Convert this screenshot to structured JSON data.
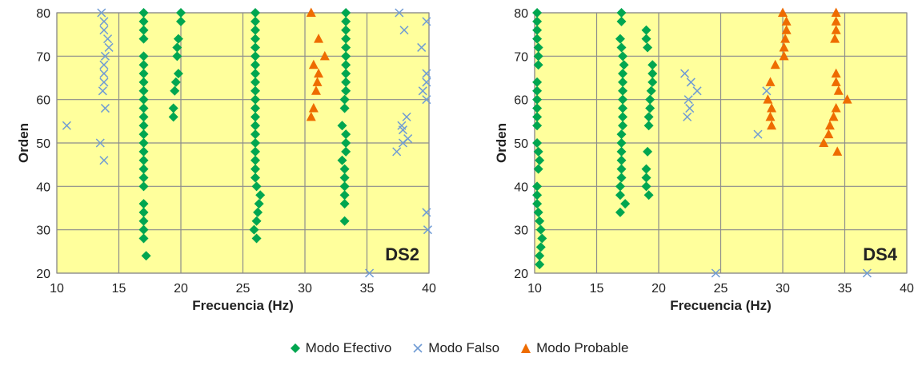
{
  "legend": {
    "effective": "Modo Efectivo",
    "false": "Modo Falso",
    "probable": "Modo Probable"
  },
  "colors": {
    "effective": "#00a650",
    "false": "#6f9bd4",
    "probable": "#ee6c00",
    "plot_bg": "#ffff9c",
    "grid": "#8c8c8c"
  },
  "chart_data": [
    {
      "type": "scatter",
      "label": "DS2",
      "xlabel": "Frecuencia (Hz)",
      "ylabel": "Orden",
      "xlim": [
        10,
        40
      ],
      "ylim": [
        20,
        80
      ],
      "xticks": [
        10,
        15,
        20,
        25,
        30,
        35,
        40
      ],
      "yticks": [
        20,
        30,
        40,
        50,
        60,
        70,
        80
      ],
      "grid": true,
      "series": [
        {
          "name": "Modo Efectivo",
          "marker": "diamond",
          "points": [
            [
              17.0,
              80
            ],
            [
              17.0,
              78
            ],
            [
              17.0,
              76
            ],
            [
              17.0,
              74
            ],
            [
              17.0,
              70
            ],
            [
              17.0,
              68
            ],
            [
              17.0,
              66
            ],
            [
              17.0,
              64
            ],
            [
              17.0,
              62
            ],
            [
              17.0,
              60
            ],
            [
              17.0,
              58
            ],
            [
              17.0,
              56
            ],
            [
              17.0,
              54
            ],
            [
              17.0,
              52
            ],
            [
              17.0,
              50
            ],
            [
              17.0,
              48
            ],
            [
              17.0,
              46
            ],
            [
              17.0,
              44
            ],
            [
              17.0,
              42
            ],
            [
              17.0,
              40
            ],
            [
              17.0,
              36
            ],
            [
              17.0,
              34
            ],
            [
              17.0,
              32
            ],
            [
              17.0,
              30
            ],
            [
              17.0,
              28
            ],
            [
              17.2,
              24
            ],
            [
              20.0,
              80
            ],
            [
              20.0,
              78
            ],
            [
              19.8,
              74
            ],
            [
              19.7,
              72
            ],
            [
              19.7,
              70
            ],
            [
              19.8,
              66
            ],
            [
              19.6,
              64
            ],
            [
              19.5,
              62
            ],
            [
              19.4,
              58
            ],
            [
              19.4,
              56
            ],
            [
              26.0,
              80
            ],
            [
              26.0,
              78
            ],
            [
              26.0,
              76
            ],
            [
              26.0,
              74
            ],
            [
              26.0,
              72
            ],
            [
              26.0,
              70
            ],
            [
              26.0,
              68
            ],
            [
              26.0,
              66
            ],
            [
              26.0,
              64
            ],
            [
              26.0,
              62
            ],
            [
              26.0,
              60
            ],
            [
              26.0,
              58
            ],
            [
              26.0,
              56
            ],
            [
              26.0,
              54
            ],
            [
              26.0,
              52
            ],
            [
              26.0,
              50
            ],
            [
              26.0,
              48
            ],
            [
              26.0,
              46
            ],
            [
              26.0,
              44
            ],
            [
              26.0,
              42
            ],
            [
              26.1,
              40
            ],
            [
              26.4,
              38
            ],
            [
              26.3,
              36
            ],
            [
              26.2,
              34
            ],
            [
              26.1,
              32
            ],
            [
              25.9,
              30
            ],
            [
              26.1,
              28
            ],
            [
              33.3,
              80
            ],
            [
              33.3,
              78
            ],
            [
              33.3,
              76
            ],
            [
              33.3,
              74
            ],
            [
              33.3,
              72
            ],
            [
              33.3,
              70
            ],
            [
              33.3,
              68
            ],
            [
              33.3,
              66
            ],
            [
              33.3,
              64
            ],
            [
              33.3,
              62
            ],
            [
              33.2,
              60
            ],
            [
              33.2,
              58
            ],
            [
              33.0,
              54
            ],
            [
              33.3,
              52
            ],
            [
              33.3,
              50
            ],
            [
              33.3,
              48
            ],
            [
              33.0,
              46
            ],
            [
              33.2,
              44
            ],
            [
              33.2,
              42
            ],
            [
              33.2,
              40
            ],
            [
              33.2,
              38
            ],
            [
              33.2,
              36
            ],
            [
              33.2,
              32
            ]
          ]
        },
        {
          "name": "Modo Falso",
          "marker": "x",
          "points": [
            [
              10.8,
              54
            ],
            [
              13.6,
              80
            ],
            [
              13.8,
              78
            ],
            [
              13.8,
              76
            ],
            [
              14.1,
              74
            ],
            [
              14.2,
              72
            ],
            [
              13.9,
              70
            ],
            [
              13.8,
              68
            ],
            [
              13.8,
              66
            ],
            [
              13.8,
              64
            ],
            [
              13.7,
              62
            ],
            [
              13.9,
              58
            ],
            [
              13.5,
              50
            ],
            [
              13.8,
              46
            ],
            [
              37.6,
              80
            ],
            [
              38.0,
              76
            ],
            [
              39.8,
              78
            ],
            [
              39.4,
              72
            ],
            [
              39.8,
              66
            ],
            [
              39.8,
              64
            ],
            [
              39.5,
              62
            ],
            [
              39.8,
              60
            ],
            [
              38.2,
              56
            ],
            [
              37.8,
              54
            ],
            [
              37.9,
              53
            ],
            [
              38.3,
              51
            ],
            [
              37.9,
              50
            ],
            [
              37.4,
              48
            ],
            [
              39.8,
              34
            ],
            [
              39.9,
              30
            ],
            [
              35.2,
              20
            ]
          ]
        },
        {
          "name": "Modo Probable",
          "marker": "triangle",
          "points": [
            [
              30.5,
              80
            ],
            [
              31.1,
              74
            ],
            [
              31.6,
              70
            ],
            [
              30.7,
              68
            ],
            [
              31.1,
              66
            ],
            [
              31.0,
              64
            ],
            [
              30.9,
              62
            ],
            [
              30.7,
              58
            ],
            [
              30.5,
              56
            ]
          ]
        }
      ]
    },
    {
      "type": "scatter",
      "label": "DS4",
      "xlabel": "Frecuencia (Hz)",
      "ylabel": "Orden",
      "xlim": [
        10,
        40
      ],
      "ylim": [
        20,
        80
      ],
      "xticks": [
        10,
        15,
        20,
        25,
        30,
        35,
        40
      ],
      "yticks": [
        20,
        30,
        40,
        50,
        60,
        70,
        80
      ],
      "grid": true,
      "series": [
        {
          "name": "Modo Efectivo",
          "marker": "diamond",
          "points": [
            [
              10.2,
              80
            ],
            [
              10.2,
              78
            ],
            [
              10.2,
              76
            ],
            [
              10.2,
              74
            ],
            [
              10.3,
              72
            ],
            [
              10.3,
              70
            ],
            [
              10.3,
              68
            ],
            [
              10.2,
              64
            ],
            [
              10.2,
              62
            ],
            [
              10.2,
              60
            ],
            [
              10.2,
              58
            ],
            [
              10.2,
              56
            ],
            [
              10.2,
              54
            ],
            [
              10.2,
              50
            ],
            [
              10.3,
              48
            ],
            [
              10.4,
              46
            ],
            [
              10.3,
              44
            ],
            [
              10.2,
              40
            ],
            [
              10.2,
              38
            ],
            [
              10.2,
              36
            ],
            [
              10.3,
              34
            ],
            [
              10.4,
              32
            ],
            [
              10.5,
              30
            ],
            [
              10.6,
              28
            ],
            [
              10.5,
              26
            ],
            [
              10.4,
              24
            ],
            [
              10.4,
              22
            ],
            [
              17.0,
              80
            ],
            [
              17.0,
              78
            ],
            [
              16.9,
              74
            ],
            [
              17.0,
              72
            ],
            [
              17.1,
              70
            ],
            [
              17.2,
              68
            ],
            [
              17.1,
              66
            ],
            [
              17.1,
              64
            ],
            [
              17.1,
              62
            ],
            [
              17.1,
              60
            ],
            [
              17.1,
              58
            ],
            [
              17.1,
              56
            ],
            [
              17.1,
              54
            ],
            [
              17.0,
              52
            ],
            [
              17.0,
              50
            ],
            [
              17.0,
              48
            ],
            [
              17.0,
              46
            ],
            [
              17.0,
              44
            ],
            [
              17.0,
              42
            ],
            [
              16.9,
              40
            ],
            [
              16.9,
              38
            ],
            [
              17.3,
              36
            ],
            [
              16.9,
              34
            ],
            [
              19.0,
              76
            ],
            [
              19.0,
              74
            ],
            [
              19.1,
              72
            ],
            [
              19.5,
              68
            ],
            [
              19.5,
              66
            ],
            [
              19.5,
              64
            ],
            [
              19.4,
              62
            ],
            [
              19.3,
              60
            ],
            [
              19.3,
              58
            ],
            [
              19.2,
              56
            ],
            [
              19.2,
              54
            ],
            [
              19.1,
              48
            ],
            [
              19.0,
              44
            ],
            [
              19.0,
              42
            ],
            [
              19.0,
              40
            ],
            [
              19.2,
              38
            ]
          ]
        },
        {
          "name": "Modo Falso",
          "marker": "x",
          "points": [
            [
              22.1,
              66
            ],
            [
              22.6,
              64
            ],
            [
              23.1,
              62
            ],
            [
              22.4,
              60
            ],
            [
              22.5,
              58
            ],
            [
              22.3,
              56
            ],
            [
              28.7,
              62
            ],
            [
              28.0,
              52
            ],
            [
              24.6,
              20
            ],
            [
              36.8,
              20
            ]
          ]
        },
        {
          "name": "Modo Probable",
          "marker": "triangle",
          "points": [
            [
              30.0,
              80
            ],
            [
              30.3,
              78
            ],
            [
              30.3,
              76
            ],
            [
              30.2,
              74
            ],
            [
              30.1,
              72
            ],
            [
              30.1,
              70
            ],
            [
              29.4,
              68
            ],
            [
              29.0,
              64
            ],
            [
              28.8,
              60
            ],
            [
              29.1,
              58
            ],
            [
              29.0,
              56
            ],
            [
              29.1,
              54
            ],
            [
              34.3,
              80
            ],
            [
              34.3,
              78
            ],
            [
              34.3,
              76
            ],
            [
              34.2,
              74
            ],
            [
              34.3,
              66
            ],
            [
              34.3,
              64
            ],
            [
              34.5,
              62
            ],
            [
              35.2,
              60
            ],
            [
              34.3,
              58
            ],
            [
              34.1,
              56
            ],
            [
              33.8,
              54
            ],
            [
              33.7,
              52
            ],
            [
              33.3,
              50
            ],
            [
              34.4,
              48
            ]
          ]
        }
      ]
    }
  ]
}
